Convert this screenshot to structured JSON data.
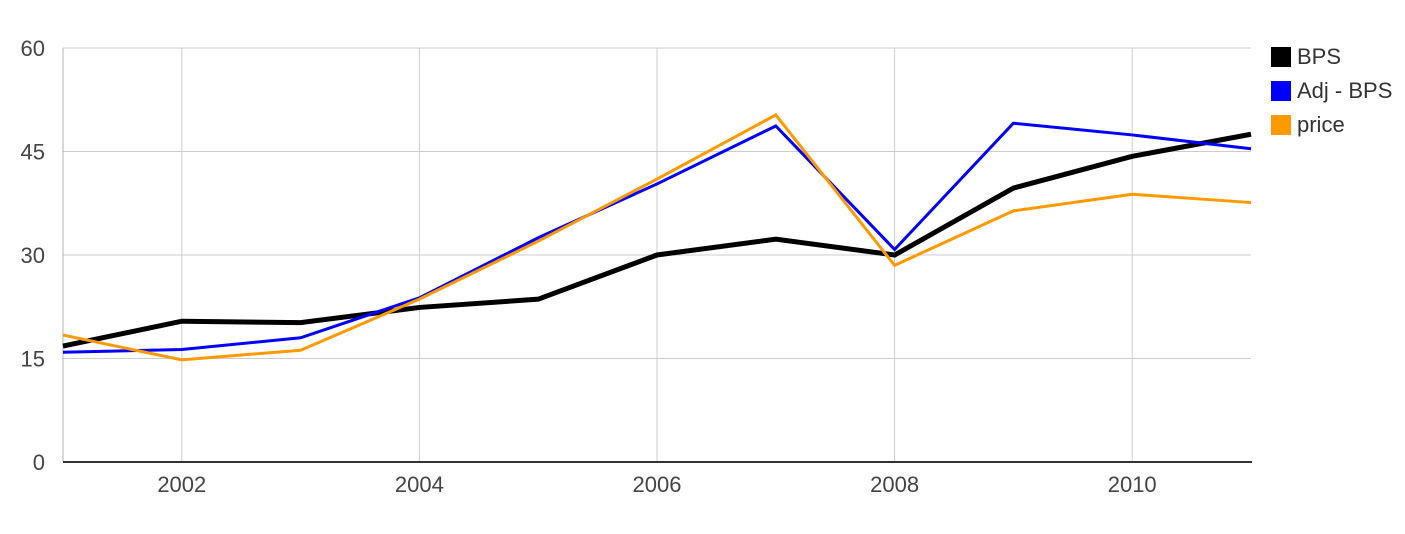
{
  "chart_data": {
    "type": "line",
    "title": "",
    "x": [
      2001,
      2002,
      2003,
      2004,
      2005,
      2006,
      2007,
      2008,
      2009,
      2010,
      2011
    ],
    "series": [
      {
        "name": "BPS",
        "color": "#000000",
        "line_width": 5,
        "values": [
          16.8,
          20.4,
          20.2,
          22.4,
          23.6,
          30.0,
          32.3,
          30.0,
          39.7,
          44.3,
          47.5
        ]
      },
      {
        "name": "Adj - BPS",
        "color": "#0000ff",
        "line_width": 3,
        "values": [
          15.9,
          16.3,
          18.0,
          23.8,
          32.5,
          40.3,
          48.7,
          30.8,
          49.1,
          47.4,
          45.4
        ]
      },
      {
        "name": "price",
        "color": "#ff9900",
        "line_width": 3,
        "values": [
          18.4,
          14.8,
          16.2,
          23.6,
          32.0,
          41.0,
          50.3,
          28.5,
          36.4,
          38.8,
          37.6
        ]
      }
    ],
    "xlim": [
      2001,
      2011
    ],
    "ylim": [
      0,
      60
    ],
    "x_ticks": [
      2002,
      2004,
      2006,
      2008,
      2010
    ],
    "y_ticks": [
      0,
      15,
      30,
      45,
      60
    ],
    "grid": true,
    "legend_position": "right",
    "colors": {
      "background": "#ffffff",
      "gridline": "#cccccc",
      "plot_border": "#b0b0b0",
      "axis": "#333333",
      "tick_label": "#444444",
      "legend_label": "#333333"
    }
  }
}
